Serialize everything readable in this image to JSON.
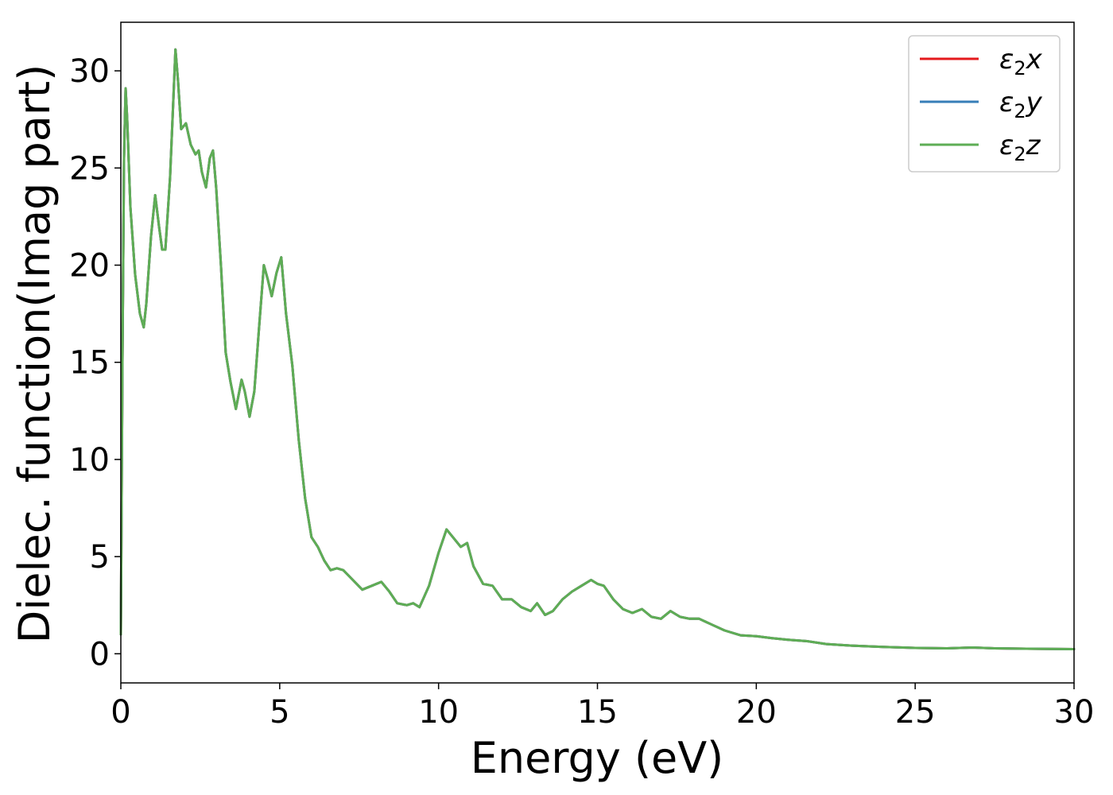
{
  "chart_data": {
    "type": "line",
    "title": "",
    "xlabel": "Energy (eV)",
    "ylabel": "Dielec. function(Imag part)",
    "xlim": [
      0,
      30
    ],
    "ylim": [
      -1.5,
      32.5
    ],
    "xticks": [
      0,
      5,
      10,
      15,
      20,
      25,
      30
    ],
    "yticks": [
      0,
      5,
      10,
      15,
      20,
      25,
      30
    ],
    "grid": false,
    "legend_position": "top-right",
    "series": [
      {
        "name": "ε₂x",
        "legend": {
          "base": "ε",
          "sub": "2",
          "suffix": "x"
        },
        "color": "#e41a1c",
        "x": [
          0,
          0.05,
          0.1,
          0.15,
          0.2,
          0.3,
          0.45,
          0.6,
          0.72,
          0.8,
          0.95,
          1.08,
          1.2,
          1.3,
          1.4,
          1.55,
          1.72,
          1.8,
          1.9,
          2.05,
          2.2,
          2.35,
          2.45,
          2.55,
          2.68,
          2.8,
          2.9,
          3.0,
          3.15,
          3.3,
          3.45,
          3.62,
          3.8,
          3.9,
          4.05,
          4.2,
          4.35,
          4.5,
          4.62,
          4.75,
          4.9,
          5.05,
          5.2,
          5.4,
          5.6,
          5.8,
          6.0,
          6.2,
          6.4,
          6.6,
          6.8,
          7.0,
          7.3,
          7.6,
          7.9,
          8.2,
          8.45,
          8.7,
          9.0,
          9.2,
          9.4,
          9.7,
          10.0,
          10.25,
          10.5,
          10.7,
          10.9,
          11.1,
          11.4,
          11.7,
          12.0,
          12.3,
          12.6,
          12.9,
          13.1,
          13.35,
          13.6,
          13.9,
          14.2,
          14.5,
          14.8,
          15.0,
          15.2,
          15.5,
          15.8,
          16.1,
          16.4,
          16.7,
          17.0,
          17.3,
          17.6,
          17.9,
          18.2,
          18.6,
          19.0,
          19.5,
          20.0,
          20.5,
          21.0,
          21.6,
          22.2,
          23.0,
          24.0,
          25.0,
          26.0,
          26.8,
          27.5,
          28.5,
          29.2,
          30.0
        ],
        "y": [
          1.0,
          15.0,
          25.5,
          29.1,
          27.5,
          23.0,
          19.5,
          17.5,
          16.8,
          18.0,
          21.5,
          23.6,
          22.0,
          20.8,
          20.8,
          24.5,
          31.1,
          29.5,
          27.0,
          27.3,
          26.2,
          25.7,
          25.9,
          24.8,
          24.0,
          25.5,
          25.9,
          24.0,
          20.0,
          15.5,
          14.0,
          12.6,
          14.1,
          13.5,
          12.2,
          13.5,
          16.8,
          20.0,
          19.3,
          18.4,
          19.6,
          20.4,
          17.5,
          14.8,
          11.0,
          8.0,
          6.0,
          5.5,
          4.8,
          4.3,
          4.4,
          4.3,
          3.8,
          3.3,
          3.5,
          3.7,
          3.2,
          2.6,
          2.5,
          2.6,
          2.4,
          3.5,
          5.2,
          6.4,
          5.9,
          5.5,
          5.7,
          4.5,
          3.6,
          3.5,
          2.8,
          2.8,
          2.4,
          2.2,
          2.6,
          2.0,
          2.2,
          2.8,
          3.2,
          3.5,
          3.8,
          3.6,
          3.5,
          2.8,
          2.3,
          2.1,
          2.3,
          1.9,
          1.8,
          2.2,
          1.9,
          1.8,
          1.8,
          1.5,
          1.2,
          0.95,
          0.9,
          0.8,
          0.72,
          0.65,
          0.5,
          0.42,
          0.35,
          0.3,
          0.28,
          0.32,
          0.28,
          0.26,
          0.25,
          0.24
        ]
      },
      {
        "name": "ε₂y",
        "legend": {
          "base": "ε",
          "sub": "2",
          "suffix": "y"
        },
        "color": "#377eb8",
        "x": [
          0,
          0.05,
          0.1,
          0.15,
          0.2,
          0.3,
          0.45,
          0.6,
          0.72,
          0.8,
          0.95,
          1.08,
          1.2,
          1.3,
          1.4,
          1.55,
          1.72,
          1.8,
          1.9,
          2.05,
          2.2,
          2.35,
          2.45,
          2.55,
          2.68,
          2.8,
          2.9,
          3.0,
          3.15,
          3.3,
          3.45,
          3.62,
          3.8,
          3.9,
          4.05,
          4.2,
          4.35,
          4.5,
          4.62,
          4.75,
          4.9,
          5.05,
          5.2,
          5.4,
          5.6,
          5.8,
          6.0,
          6.2,
          6.4,
          6.6,
          6.8,
          7.0,
          7.3,
          7.6,
          7.9,
          8.2,
          8.45,
          8.7,
          9.0,
          9.2,
          9.4,
          9.7,
          10.0,
          10.25,
          10.5,
          10.7,
          10.9,
          11.1,
          11.4,
          11.7,
          12.0,
          12.3,
          12.6,
          12.9,
          13.1,
          13.35,
          13.6,
          13.9,
          14.2,
          14.5,
          14.8,
          15.0,
          15.2,
          15.5,
          15.8,
          16.1,
          16.4,
          16.7,
          17.0,
          17.3,
          17.6,
          17.9,
          18.2,
          18.6,
          19.0,
          19.5,
          20.0,
          20.5,
          21.0,
          21.6,
          22.2,
          23.0,
          24.0,
          25.0,
          26.0,
          26.8,
          27.5,
          28.5,
          29.2,
          30.0
        ],
        "y": [
          1.0,
          15.0,
          25.5,
          29.1,
          27.5,
          23.0,
          19.5,
          17.5,
          16.8,
          18.0,
          21.5,
          23.6,
          22.0,
          20.8,
          20.8,
          24.5,
          31.1,
          29.5,
          27.0,
          27.3,
          26.2,
          25.7,
          25.9,
          24.8,
          24.0,
          25.5,
          25.9,
          24.0,
          20.0,
          15.5,
          14.0,
          12.6,
          14.1,
          13.5,
          12.2,
          13.5,
          16.8,
          20.0,
          19.3,
          18.4,
          19.6,
          20.4,
          17.5,
          14.8,
          11.0,
          8.0,
          6.0,
          5.5,
          4.8,
          4.3,
          4.4,
          4.3,
          3.8,
          3.3,
          3.5,
          3.7,
          3.2,
          2.6,
          2.5,
          2.6,
          2.4,
          3.5,
          5.2,
          6.4,
          5.9,
          5.5,
          5.7,
          4.5,
          3.6,
          3.5,
          2.8,
          2.8,
          2.4,
          2.2,
          2.6,
          2.0,
          2.2,
          2.8,
          3.2,
          3.5,
          3.8,
          3.6,
          3.5,
          2.8,
          2.3,
          2.1,
          2.3,
          1.9,
          1.8,
          2.2,
          1.9,
          1.8,
          1.8,
          1.5,
          1.2,
          0.95,
          0.9,
          0.8,
          0.72,
          0.65,
          0.5,
          0.42,
          0.35,
          0.3,
          0.28,
          0.32,
          0.28,
          0.26,
          0.25,
          0.24
        ]
      },
      {
        "name": "ε₂z",
        "legend": {
          "base": "ε",
          "sub": "2",
          "suffix": "z"
        },
        "color": "#5ead55",
        "x": [
          0,
          0.05,
          0.1,
          0.15,
          0.2,
          0.3,
          0.45,
          0.6,
          0.72,
          0.8,
          0.95,
          1.08,
          1.2,
          1.3,
          1.4,
          1.55,
          1.72,
          1.8,
          1.9,
          2.05,
          2.2,
          2.35,
          2.45,
          2.55,
          2.68,
          2.8,
          2.9,
          3.0,
          3.15,
          3.3,
          3.45,
          3.62,
          3.8,
          3.9,
          4.05,
          4.2,
          4.35,
          4.5,
          4.62,
          4.75,
          4.9,
          5.05,
          5.2,
          5.4,
          5.6,
          5.8,
          6.0,
          6.2,
          6.4,
          6.6,
          6.8,
          7.0,
          7.3,
          7.6,
          7.9,
          8.2,
          8.45,
          8.7,
          9.0,
          9.2,
          9.4,
          9.7,
          10.0,
          10.25,
          10.5,
          10.7,
          10.9,
          11.1,
          11.4,
          11.7,
          12.0,
          12.3,
          12.6,
          12.9,
          13.1,
          13.35,
          13.6,
          13.9,
          14.2,
          14.5,
          14.8,
          15.0,
          15.2,
          15.5,
          15.8,
          16.1,
          16.4,
          16.7,
          17.0,
          17.3,
          17.6,
          17.9,
          18.2,
          18.6,
          19.0,
          19.5,
          20.0,
          20.5,
          21.0,
          21.6,
          22.2,
          23.0,
          24.0,
          25.0,
          26.0,
          26.8,
          27.5,
          28.5,
          29.2,
          30.0
        ],
        "y": [
          1.0,
          15.0,
          25.5,
          29.1,
          27.5,
          23.0,
          19.5,
          17.5,
          16.8,
          18.0,
          21.5,
          23.6,
          22.0,
          20.8,
          20.8,
          24.5,
          31.1,
          29.5,
          27.0,
          27.3,
          26.2,
          25.7,
          25.9,
          24.8,
          24.0,
          25.5,
          25.9,
          24.0,
          20.0,
          15.5,
          14.0,
          12.6,
          14.1,
          13.5,
          12.2,
          13.5,
          16.8,
          20.0,
          19.3,
          18.4,
          19.6,
          20.4,
          17.5,
          14.8,
          11.0,
          8.0,
          6.0,
          5.5,
          4.8,
          4.3,
          4.4,
          4.3,
          3.8,
          3.3,
          3.5,
          3.7,
          3.2,
          2.6,
          2.5,
          2.6,
          2.4,
          3.5,
          5.2,
          6.4,
          5.9,
          5.5,
          5.7,
          4.5,
          3.6,
          3.5,
          2.8,
          2.8,
          2.4,
          2.2,
          2.6,
          2.0,
          2.2,
          2.8,
          3.2,
          3.5,
          3.8,
          3.6,
          3.5,
          2.8,
          2.3,
          2.1,
          2.3,
          1.9,
          1.8,
          2.2,
          1.9,
          1.8,
          1.8,
          1.5,
          1.2,
          0.95,
          0.9,
          0.8,
          0.72,
          0.65,
          0.5,
          0.42,
          0.35,
          0.3,
          0.28,
          0.32,
          0.28,
          0.26,
          0.25,
          0.24
        ]
      }
    ]
  }
}
